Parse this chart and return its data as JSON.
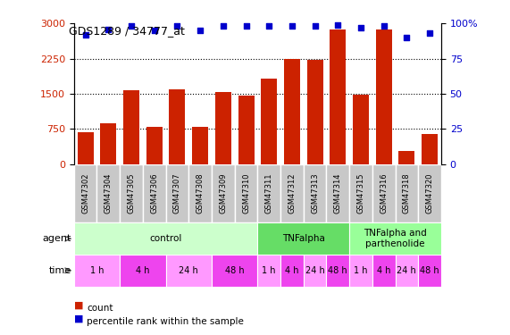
{
  "title": "GDS1289 / 34777_at",
  "samples": [
    "GSM47302",
    "GSM47304",
    "GSM47305",
    "GSM47306",
    "GSM47307",
    "GSM47308",
    "GSM47309",
    "GSM47310",
    "GSM47311",
    "GSM47312",
    "GSM47313",
    "GSM47314",
    "GSM47315",
    "GSM47316",
    "GSM47318",
    "GSM47320"
  ],
  "counts": [
    680,
    870,
    1580,
    800,
    1600,
    800,
    1530,
    1460,
    1820,
    2250,
    2220,
    2880,
    1480,
    2870,
    280,
    650
  ],
  "percentiles": [
    92,
    96,
    98,
    95,
    98,
    95,
    98,
    98,
    98,
    98,
    98,
    99,
    97,
    98,
    90,
    93
  ],
  "ylim_left": [
    0,
    3000
  ],
  "ylim_right": [
    0,
    100
  ],
  "yticks_left": [
    0,
    750,
    1500,
    2250,
    3000
  ],
  "yticks_right": [
    0,
    25,
    50,
    75,
    100
  ],
  "bar_color": "#CC2200",
  "dot_color": "#0000CC",
  "sample_bg_color": "#C8C8C8",
  "agent_groups": [
    {
      "label": "control",
      "start": 0,
      "end": 8,
      "color": "#CCFFCC"
    },
    {
      "label": "TNFalpha",
      "start": 8,
      "end": 12,
      "color": "#66DD66"
    },
    {
      "label": "TNFalpha and\nparthenolide",
      "start": 12,
      "end": 16,
      "color": "#99FF99"
    }
  ],
  "time_groups": [
    {
      "label": "1 h",
      "start": 0,
      "end": 2,
      "color": "#FF99FF"
    },
    {
      "label": "4 h",
      "start": 2,
      "end": 4,
      "color": "#EE44EE"
    },
    {
      "label": "24 h",
      "start": 4,
      "end": 6,
      "color": "#FF99FF"
    },
    {
      "label": "48 h",
      "start": 6,
      "end": 8,
      "color": "#EE44EE"
    },
    {
      "label": "1 h",
      "start": 8,
      "end": 9,
      "color": "#FF99FF"
    },
    {
      "label": "4 h",
      "start": 9,
      "end": 10,
      "color": "#EE44EE"
    },
    {
      "label": "24 h",
      "start": 10,
      "end": 11,
      "color": "#FF99FF"
    },
    {
      "label": "48 h",
      "start": 11,
      "end": 12,
      "color": "#EE44EE"
    },
    {
      "label": "1 h",
      "start": 12,
      "end": 13,
      "color": "#FF99FF"
    },
    {
      "label": "4 h",
      "start": 13,
      "end": 14,
      "color": "#EE44EE"
    },
    {
      "label": "24 h",
      "start": 14,
      "end": 15,
      "color": "#FF99FF"
    },
    {
      "label": "48 h",
      "start": 15,
      "end": 16,
      "color": "#EE44EE"
    }
  ],
  "legend_count_color": "#CC2200",
  "legend_dot_color": "#0000CC"
}
